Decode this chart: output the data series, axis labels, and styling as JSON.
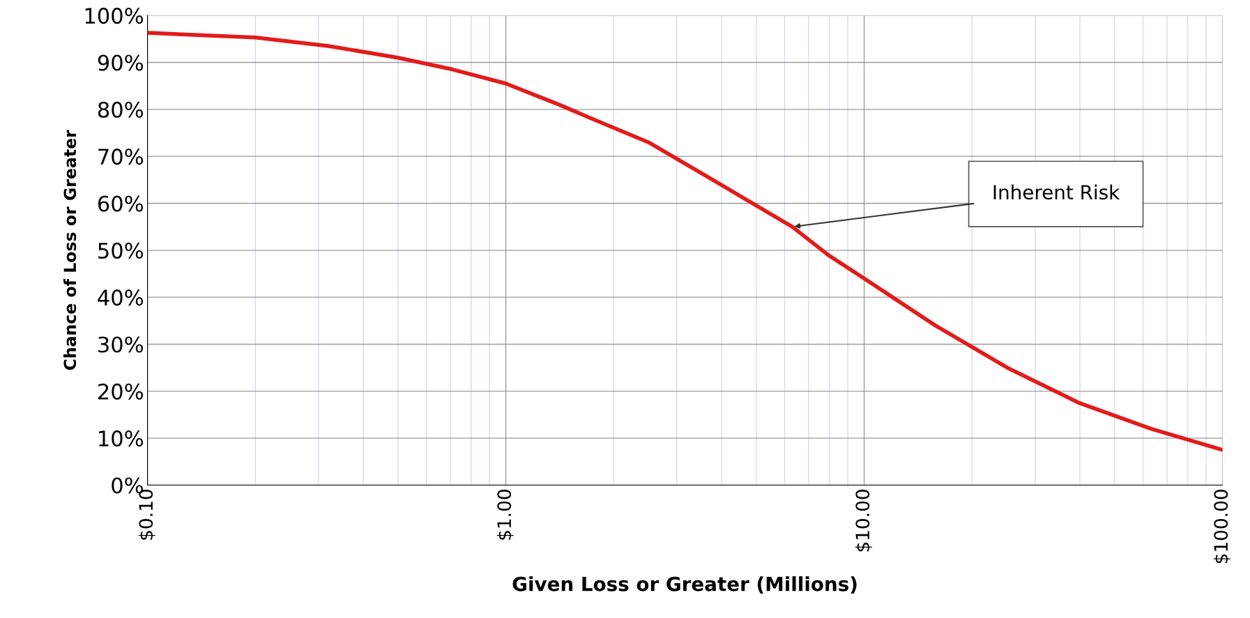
{
  "chart_data": {
    "type": "line",
    "xlabel": "Given Loss or Greater (Millions)",
    "ylabel": "Chance of Loss or Greater",
    "x": [
      0.1,
      0.2,
      0.32,
      0.5,
      0.71,
      1.0,
      1.41,
      1.74,
      2.5,
      3.98,
      6.3,
      7.94,
      10,
      15.8,
      25.1,
      39.8,
      63.1,
      100
    ],
    "series": [
      {
        "color": "#e31b1b",
        "values": [
          96.3,
          95.3,
          93.5,
          91,
          88.5,
          85.5,
          81,
          78,
          73,
          64,
          55,
          49,
          44,
          34,
          25,
          17.5,
          12,
          7.5
        ]
      }
    ],
    "log": "x",
    "xlim": [
      0.1,
      100
    ],
    "xticks": [
      {
        "value": 0.1,
        "label": "$0.10"
      },
      {
        "value": 1,
        "label": "$1.00"
      },
      {
        "value": 10,
        "label": "$10.00"
      },
      {
        "value": 100,
        "label": "$100.00"
      }
    ],
    "ylim": [
      0,
      100
    ],
    "yticks": [
      {
        "value": 0,
        "label": "0%"
      },
      {
        "value": 10,
        "label": "10%"
      },
      {
        "value": 20,
        "label": "20%"
      },
      {
        "value": 30,
        "label": "30%"
      },
      {
        "value": 40,
        "label": "40%"
      },
      {
        "value": 50,
        "label": "50%"
      },
      {
        "value": 60,
        "label": "60%"
      },
      {
        "value": 70,
        "label": "70%"
      },
      {
        "value": 80,
        "label": "80%"
      },
      {
        "value": 90,
        "label": "90%"
      },
      {
        "value": 100,
        "label": "100%"
      }
    ],
    "grid": true,
    "annotations": [
      {
        "text": "Inherent Risk",
        "x": 6.3,
        "y": 55
      }
    ]
  }
}
